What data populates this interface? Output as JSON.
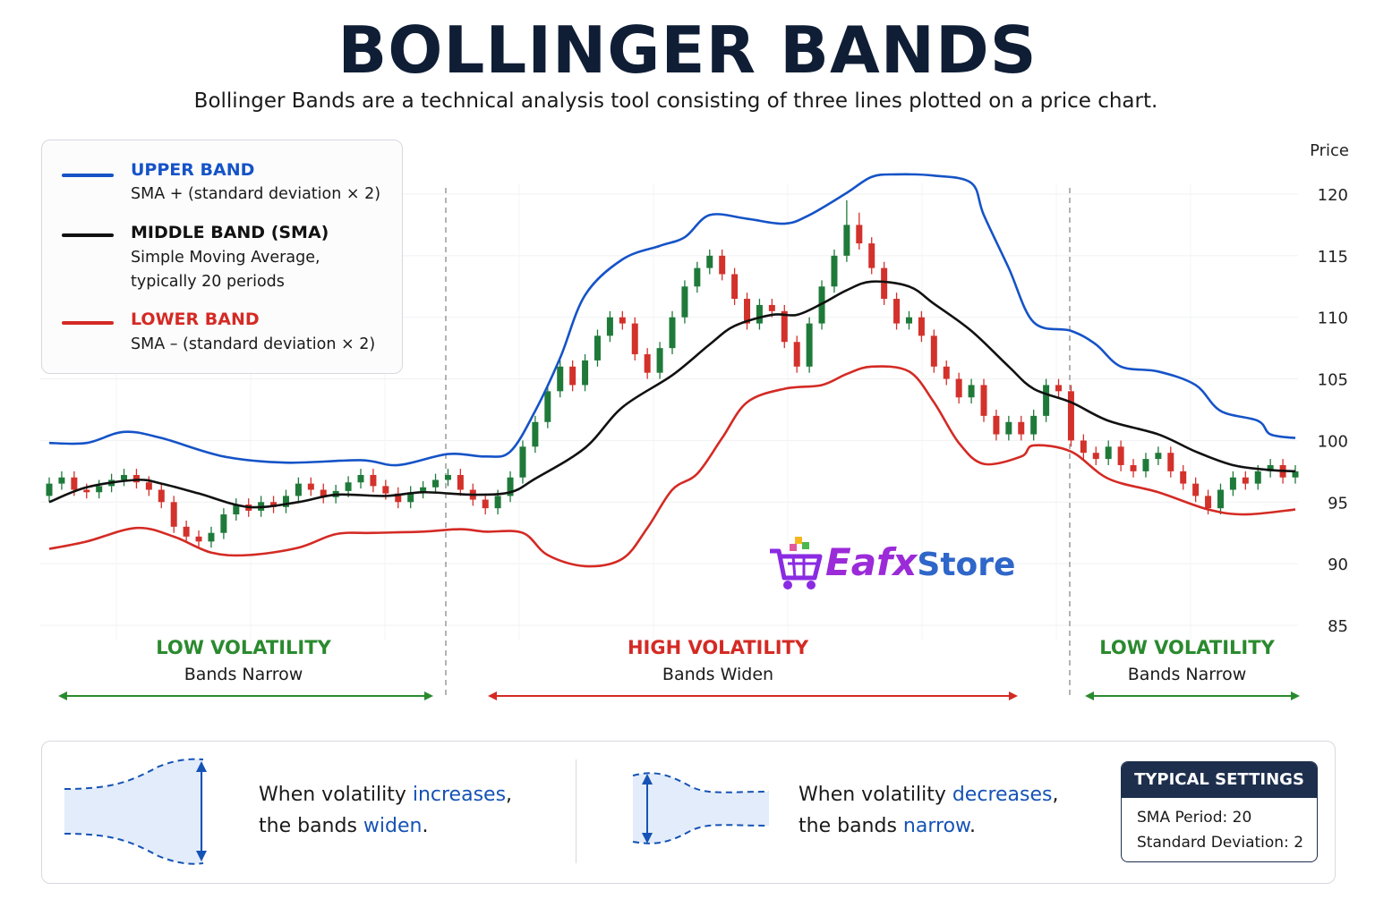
{
  "title": "BOLLINGER BANDS",
  "subtitle": "Bollinger Bands are a technical analysis tool consisting of three lines plotted on a price chart.",
  "legend": {
    "upper": {
      "title": "UPPER BAND",
      "desc": "SMA + (standard deviation × 2)",
      "color": "#1553c7"
    },
    "middle": {
      "title": "MIDDLE BAND (SMA)",
      "desc1": "Simple Moving Average,",
      "desc2": "typically 20 periods",
      "color": "#111111"
    },
    "lower": {
      "title": "LOWER BAND",
      "desc": "SMA – (standard deviation × 2)",
      "color": "#d42a24"
    }
  },
  "regions": [
    {
      "title": "LOW VOLATILITY",
      "sub": "Bands Narrow",
      "color": "#2a8a2e"
    },
    {
      "title": "HIGH VOLATILITY",
      "sub": "Bands Widen",
      "color": "#d42a24"
    },
    {
      "title": "LOW VOLATILITY",
      "sub": "Bands Narrow",
      "color": "#2a8a2e"
    }
  ],
  "logo": {
    "part1": "Eafx",
    "part2": "Store",
    "icon": "shopping-cart-icon"
  },
  "panel": {
    "widen": {
      "pre": "When volatility ",
      "kw1": "increases",
      "mid": ",",
      "line2pre": "the bands ",
      "kw2": "widen",
      "end": "."
    },
    "narrow": {
      "pre": "When volatility ",
      "kw1": "decreases",
      "mid": ",",
      "line2pre": "the bands ",
      "kw2": "narrow",
      "end": "."
    },
    "settings": {
      "title": "TYPICAL SETTINGS",
      "row1": "SMA Period: 20",
      "row2": "Standard Deviation: 2"
    }
  },
  "chart_data": {
    "type": "line",
    "ylabel": "Price",
    "ylim": [
      85,
      120
    ],
    "yticks": [
      "120",
      "115",
      "110",
      "105",
      "100",
      "95",
      "90",
      "85"
    ],
    "xlim": [
      0,
      100
    ],
    "grid": true,
    "legend_position": "top-left",
    "series": [
      {
        "name": "UPPER BAND",
        "color": "#1553c7",
        "points": [
          [
            0,
            99.8
          ],
          [
            3,
            99.8
          ],
          [
            6,
            100.7
          ],
          [
            9,
            100.2
          ],
          [
            14,
            98.7
          ],
          [
            19,
            98.2
          ],
          [
            25,
            98.4
          ],
          [
            28,
            98.0
          ],
          [
            32,
            98.9
          ],
          [
            35,
            98.7
          ],
          [
            37,
            99.1
          ],
          [
            39,
            102.4
          ],
          [
            41,
            106.7
          ],
          [
            43,
            111.8
          ],
          [
            46,
            114.7
          ],
          [
            49,
            115.8
          ],
          [
            51,
            116.5
          ],
          [
            53,
            118.3
          ],
          [
            56,
            118.0
          ],
          [
            59,
            117.6
          ],
          [
            61,
            118.3
          ],
          [
            64,
            120.1
          ],
          [
            66,
            121.4
          ],
          [
            68,
            121.6
          ],
          [
            71,
            121.5
          ],
          [
            74,
            120.9
          ],
          [
            75,
            118.3
          ],
          [
            77,
            114.0
          ],
          [
            79,
            109.6
          ],
          [
            82,
            108.9
          ],
          [
            84,
            107.8
          ],
          [
            86,
            106.0
          ],
          [
            89,
            105.6
          ],
          [
            92,
            104.5
          ],
          [
            94,
            102.4
          ],
          [
            97,
            101.6
          ],
          [
            98,
            100.5
          ],
          [
            100,
            100.2
          ]
        ]
      },
      {
        "name": "MIDDLE BAND (SMA)",
        "color": "#111111",
        "points": [
          [
            0,
            95.0
          ],
          [
            3,
            96.2
          ],
          [
            7,
            96.8
          ],
          [
            9,
            96.5
          ],
          [
            12,
            95.7
          ],
          [
            16,
            94.6
          ],
          [
            20,
            95.0
          ],
          [
            23,
            95.6
          ],
          [
            27,
            95.5
          ],
          [
            30,
            95.8
          ],
          [
            34,
            95.6
          ],
          [
            37,
            95.8
          ],
          [
            39,
            96.9
          ],
          [
            43,
            99.4
          ],
          [
            46,
            102.7
          ],
          [
            50,
            105.3
          ],
          [
            53,
            107.8
          ],
          [
            55,
            109.3
          ],
          [
            58,
            110.2
          ],
          [
            60,
            110.2
          ],
          [
            62,
            111.1
          ],
          [
            64,
            112.2
          ],
          [
            66,
            112.9
          ],
          [
            69,
            112.5
          ],
          [
            71,
            111.1
          ],
          [
            74,
            108.9
          ],
          [
            77,
            106.0
          ],
          [
            79,
            104.2
          ],
          [
            82,
            103.1
          ],
          [
            85,
            101.6
          ],
          [
            89,
            100.5
          ],
          [
            92,
            99.1
          ],
          [
            95,
            98.0
          ],
          [
            98,
            97.6
          ],
          [
            100,
            97.5
          ]
        ]
      },
      {
        "name": "LOWER BAND",
        "color": "#d42a24",
        "points": [
          [
            0,
            91.2
          ],
          [
            3,
            91.8
          ],
          [
            7,
            92.9
          ],
          [
            10,
            92.2
          ],
          [
            13,
            90.9
          ],
          [
            16,
            90.7
          ],
          [
            20,
            91.3
          ],
          [
            23,
            92.4
          ],
          [
            26,
            92.5
          ],
          [
            30,
            92.6
          ],
          [
            33,
            92.8
          ],
          [
            35,
            92.6
          ],
          [
            38,
            92.5
          ],
          [
            40,
            90.7
          ],
          [
            43,
            89.8
          ],
          [
            46,
            90.4
          ],
          [
            48,
            92.9
          ],
          [
            50,
            96.0
          ],
          [
            52,
            97.3
          ],
          [
            54,
            100.2
          ],
          [
            56,
            103.1
          ],
          [
            59,
            104.2
          ],
          [
            62,
            104.5
          ],
          [
            64,
            105.4
          ],
          [
            66,
            106.0
          ],
          [
            69,
            105.6
          ],
          [
            71,
            103.1
          ],
          [
            73,
            99.8
          ],
          [
            75,
            98.1
          ],
          [
            78,
            98.7
          ],
          [
            79,
            99.6
          ],
          [
            82,
            99.1
          ],
          [
            85,
            96.9
          ],
          [
            89,
            95.8
          ],
          [
            93,
            94.4
          ],
          [
            96,
            94.0
          ],
          [
            100,
            94.4
          ]
        ]
      }
    ],
    "candles": [
      [
        95.5,
        97.0,
        95.0,
        96.5
      ],
      [
        96.5,
        97.5,
        96.0,
        97.0
      ],
      [
        97.0,
        97.5,
        95.5,
        96.0
      ],
      [
        96.0,
        96.5,
        95.3,
        95.8
      ],
      [
        95.8,
        96.8,
        95.3,
        96.3
      ],
      [
        96.3,
        97.3,
        95.8,
        96.8
      ],
      [
        96.8,
        97.7,
        96.3,
        97.2
      ],
      [
        97.2,
        97.7,
        96.1,
        96.6
      ],
      [
        96.6,
        97.1,
        95.5,
        96.0
      ],
      [
        96.0,
        96.5,
        94.5,
        95.0
      ],
      [
        95.0,
        95.5,
        92.5,
        93.0
      ],
      [
        93.0,
        93.5,
        91.7,
        92.2
      ],
      [
        92.2,
        92.7,
        91.3,
        91.8
      ],
      [
        91.8,
        93.0,
        91.3,
        92.5
      ],
      [
        92.5,
        94.5,
        92.0,
        94.0
      ],
      [
        94.0,
        95.3,
        93.5,
        94.8
      ],
      [
        94.8,
        95.3,
        93.8,
        94.3
      ],
      [
        94.3,
        95.5,
        93.8,
        95.0
      ],
      [
        95.0,
        95.5,
        94.1,
        94.6
      ],
      [
        94.6,
        96.0,
        94.1,
        95.5
      ],
      [
        95.5,
        97.0,
        95.0,
        96.5
      ],
      [
        96.5,
        97.0,
        95.5,
        96.0
      ],
      [
        96.0,
        96.5,
        94.9,
        95.4
      ],
      [
        95.4,
        96.4,
        94.9,
        95.9
      ],
      [
        95.9,
        97.1,
        95.4,
        96.6
      ],
      [
        96.6,
        97.7,
        96.1,
        97.2
      ],
      [
        97.2,
        97.7,
        95.8,
        96.3
      ],
      [
        96.3,
        96.8,
        95.2,
        95.7
      ],
      [
        95.7,
        96.2,
        94.5,
        95.0
      ],
      [
        95.0,
        96.3,
        94.5,
        95.8
      ],
      [
        95.8,
        96.7,
        95.3,
        96.2
      ],
      [
        96.2,
        97.3,
        95.7,
        96.8
      ],
      [
        96.8,
        97.7,
        96.3,
        97.2
      ],
      [
        97.2,
        97.7,
        95.5,
        96.0
      ],
      [
        96.0,
        96.5,
        94.7,
        95.2
      ],
      [
        95.2,
        95.7,
        94.0,
        94.5
      ],
      [
        94.5,
        96.0,
        94.0,
        95.5
      ],
      [
        95.5,
        97.5,
        95.0,
        97.0
      ],
      [
        97.0,
        100.0,
        96.5,
        99.5
      ],
      [
        99.5,
        102.0,
        99.0,
        101.5
      ],
      [
        101.5,
        104.5,
        101.0,
        104.0
      ],
      [
        104.0,
        106.5,
        103.5,
        106.0
      ],
      [
        106.0,
        106.5,
        104.0,
        104.5
      ],
      [
        104.5,
        107.0,
        104.0,
        106.5
      ],
      [
        106.5,
        109.0,
        106.0,
        108.5
      ],
      [
        108.5,
        110.5,
        108.0,
        110.0
      ],
      [
        110.0,
        110.5,
        109.0,
        109.5
      ],
      [
        109.5,
        110.0,
        106.5,
        107.0
      ],
      [
        107.0,
        107.5,
        105.0,
        105.5
      ],
      [
        105.5,
        108.0,
        105.0,
        107.5
      ],
      [
        107.5,
        110.5,
        107.0,
        110.0
      ],
      [
        110.0,
        113.0,
        109.5,
        112.5
      ],
      [
        112.5,
        114.5,
        112.0,
        114.0
      ],
      [
        114.0,
        115.5,
        113.5,
        115.0
      ],
      [
        115.0,
        115.5,
        113.0,
        113.5
      ],
      [
        113.5,
        114.0,
        111.0,
        111.5
      ],
      [
        111.5,
        112.0,
        109.0,
        109.5
      ],
      [
        109.5,
        111.5,
        109.0,
        111.0
      ],
      [
        111.0,
        111.5,
        110.0,
        110.5
      ],
      [
        110.5,
        111.0,
        107.5,
        108.0
      ],
      [
        108.0,
        108.5,
        105.5,
        106.0
      ],
      [
        106.0,
        110.0,
        105.5,
        109.5
      ],
      [
        109.5,
        113.0,
        109.0,
        112.5
      ],
      [
        112.5,
        115.5,
        112.0,
        115.0
      ],
      [
        115.0,
        119.5,
        114.5,
        117.5
      ],
      [
        117.5,
        118.5,
        115.5,
        116.0
      ],
      [
        116.0,
        116.5,
        113.5,
        114.0
      ],
      [
        114.0,
        114.5,
        111.0,
        111.5
      ],
      [
        111.5,
        112.0,
        109.0,
        109.5
      ],
      [
        109.5,
        110.5,
        109.0,
        110.0
      ],
      [
        110.0,
        110.5,
        108.0,
        108.5
      ],
      [
        108.5,
        109.0,
        105.5,
        106.0
      ],
      [
        106.0,
        106.5,
        104.5,
        105.0
      ],
      [
        105.0,
        105.5,
        103.0,
        103.5
      ],
      [
        103.5,
        105.0,
        103.0,
        104.5
      ],
      [
        104.5,
        105.0,
        101.5,
        102.0
      ],
      [
        102.0,
        102.5,
        100.0,
        100.5
      ],
      [
        100.5,
        102.0,
        100.0,
        101.5
      ],
      [
        101.5,
        102.0,
        100.0,
        100.5
      ],
      [
        100.5,
        102.5,
        100.0,
        102.0
      ],
      [
        102.0,
        105.0,
        101.5,
        104.5
      ],
      [
        104.5,
        105.0,
        103.5,
        104.0
      ],
      [
        104.0,
        104.5,
        99.5,
        100.0
      ],
      [
        100.0,
        100.5,
        98.5,
        99.0
      ],
      [
        99.0,
        99.5,
        98.0,
        98.5
      ],
      [
        98.5,
        100.0,
        98.0,
        99.5
      ],
      [
        99.5,
        100.0,
        97.5,
        98.0
      ],
      [
        98.0,
        98.5,
        97.0,
        97.5
      ],
      [
        97.5,
        99.0,
        97.0,
        98.5
      ],
      [
        98.5,
        99.5,
        98.0,
        99.0
      ],
      [
        99.0,
        99.5,
        97.0,
        97.5
      ],
      [
        97.5,
        98.0,
        96.0,
        96.5
      ],
      [
        96.5,
        97.0,
        95.0,
        95.5
      ],
      [
        95.5,
        96.0,
        94.0,
        94.5
      ],
      [
        94.5,
        96.5,
        94.0,
        96.0
      ],
      [
        96.0,
        97.5,
        95.5,
        97.0
      ],
      [
        97.0,
        97.5,
        96.0,
        96.5
      ],
      [
        96.5,
        98.0,
        96.0,
        97.5
      ],
      [
        97.5,
        98.5,
        97.0,
        98.0
      ],
      [
        98.0,
        98.5,
        96.5,
        97.0
      ],
      [
        97.0,
        98.0,
        96.5,
        97.5
      ]
    ],
    "candle_colors": {
      "up": "#1f7a3a",
      "down": "#d3312b"
    }
  }
}
